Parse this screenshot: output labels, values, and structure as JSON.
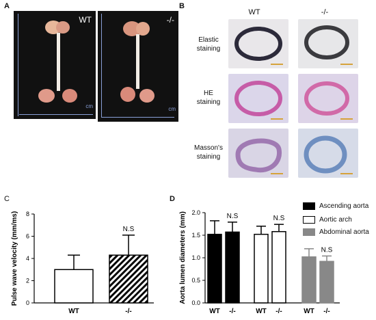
{
  "panels": {
    "a": "A",
    "b": "B",
    "c": "C",
    "d": "D"
  },
  "panel_a": {
    "left_label": "WT",
    "right_label": "-/-",
    "ruler_text_left": "cm",
    "ruler_text_right": "cm"
  },
  "panel_b": {
    "col_wt": "WT",
    "col_ko": "-/-",
    "rows": [
      {
        "line1": "Elastic",
        "line2": "staining"
      },
      {
        "line1": "HE",
        "line2": "staining"
      },
      {
        "line1": "Masson's",
        "line2": "staining"
      }
    ]
  },
  "chart_data": [
    {
      "type": "bar",
      "panel": "C",
      "categories": [
        "WT",
        "-/-"
      ],
      "values": [
        3.0,
        4.3
      ],
      "errors": [
        1.3,
        1.8
      ],
      "ylabel": "Pulse wave velocity (mm/ms)",
      "ylim": [
        0,
        8
      ],
      "yticks": [
        "0",
        "2",
        "4",
        "6",
        "8"
      ],
      "annotations": [
        "N.S"
      ],
      "colors": [
        "#ffffff",
        "hatch"
      ]
    },
    {
      "type": "bar",
      "panel": "D",
      "ylabel": "Aorta lumen diameters (mm)",
      "ylim": [
        0,
        2.0
      ],
      "yticks": [
        "0.0",
        "0.5",
        "1.0",
        "1.5",
        "2.0"
      ],
      "series": [
        {
          "name": "Ascending aorta",
          "color": "#000000",
          "categories": [
            "WT",
            "-/-"
          ],
          "values": [
            1.52,
            1.57
          ],
          "errors": [
            0.3,
            0.22
          ]
        },
        {
          "name": "Aortic arch",
          "color": "#ffffff",
          "categories": [
            "WT",
            "-/-"
          ],
          "values": [
            1.52,
            1.58
          ],
          "errors": [
            0.18,
            0.16
          ]
        },
        {
          "name": "Abdominal aorta",
          "color": "#888888",
          "categories": [
            "WT",
            "-/-"
          ],
          "values": [
            1.02,
            0.92
          ],
          "errors": [
            0.18,
            0.12
          ]
        }
      ],
      "annotations": [
        "N.S",
        "N.S",
        "N.S"
      ]
    }
  ]
}
